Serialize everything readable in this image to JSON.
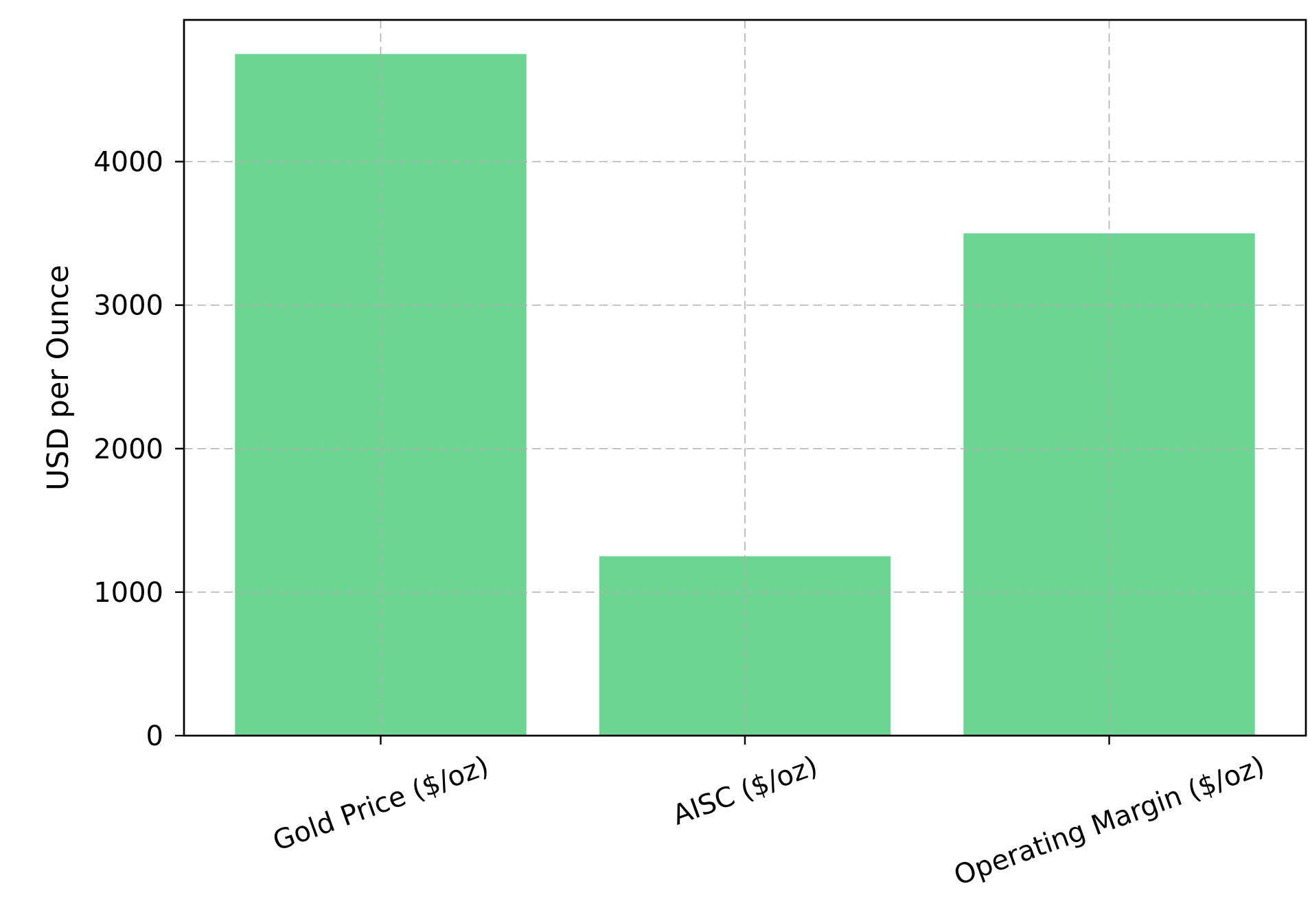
{
  "figure": {
    "background": "#ffffff"
  },
  "chart_data": {
    "type": "bar",
    "categories": [
      "Gold Price ($/oz)",
      "AISC ($/oz)",
      "Operating Margin ($/oz)"
    ],
    "values": [
      4750,
      1250,
      3500
    ],
    "title": "",
    "xlabel": "",
    "ylabel": "USD per Ounce",
    "yticks": [
      0,
      1000,
      2000,
      3000,
      4000
    ],
    "ytick_labels": [
      "0",
      "1000",
      "2000",
      "3000",
      "4000"
    ],
    "ylim": [
      0,
      4987.5
    ],
    "bar_color": "#6CD592",
    "grid": true,
    "grid_color": "#b0b0b0",
    "grid_style": "dashed",
    "grid_over_bars": true,
    "spine_color": "#000000",
    "text_color": "#000000",
    "x_tick_rotation_deg": 20,
    "legend": null
  }
}
